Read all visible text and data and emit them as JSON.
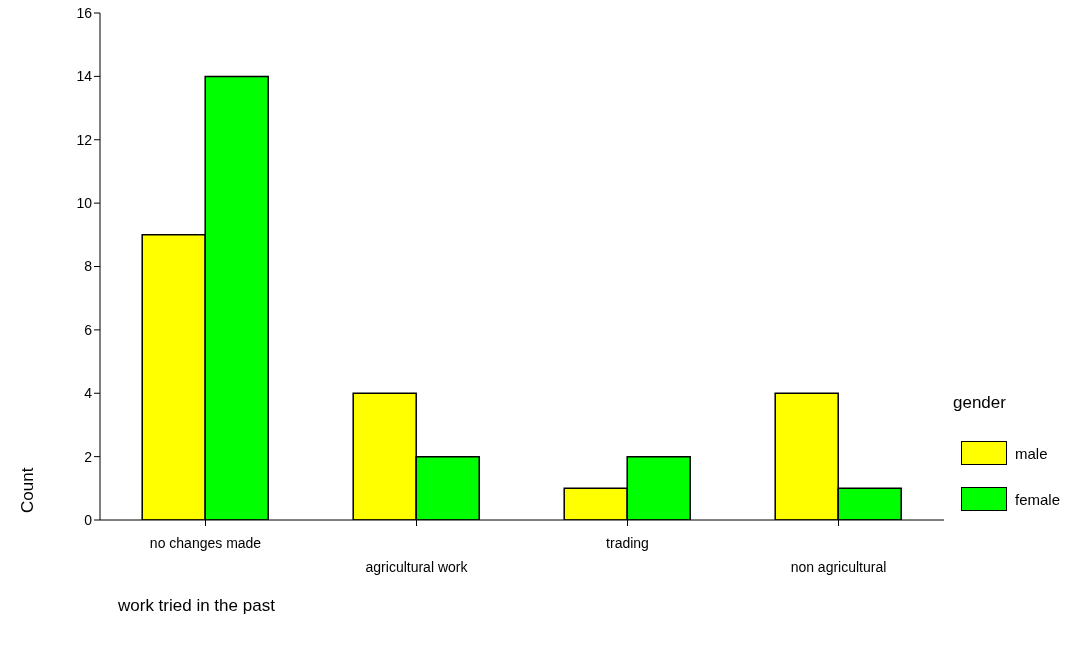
{
  "chart_data": {
    "type": "bar",
    "xlabel": "work tried in the past",
    "ylabel": "Count",
    "legend_title": "gender",
    "categories": [
      "no changes made",
      "agricultural work",
      "trading",
      "non agricultural"
    ],
    "series": [
      {
        "name": "male",
        "color": "#ffff00",
        "values": [
          9,
          4,
          1,
          4
        ]
      },
      {
        "name": "female",
        "color": "#00ff00",
        "values": [
          14,
          2,
          2,
          1
        ]
      }
    ],
    "ylim": [
      0,
      16
    ],
    "yticks": [
      0,
      2,
      4,
      6,
      8,
      10,
      12,
      14,
      16
    ],
    "grid": false,
    "legend": "right"
  }
}
